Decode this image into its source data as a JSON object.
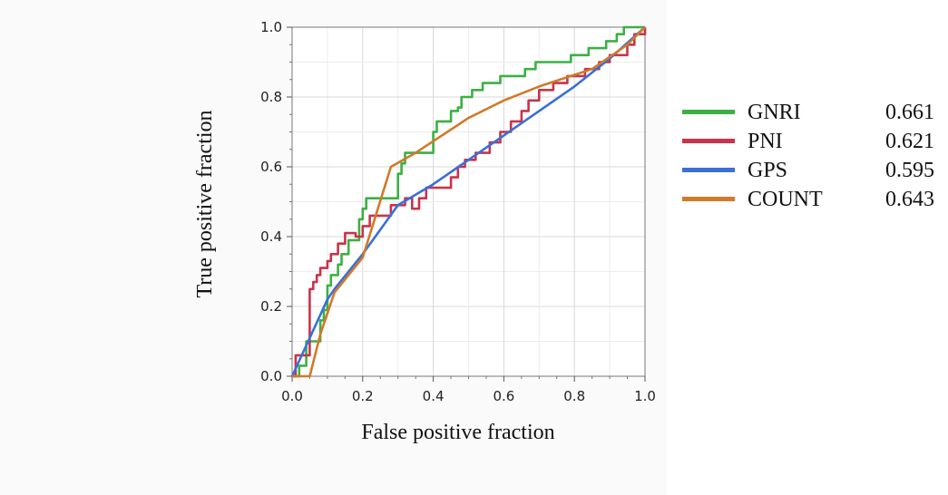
{
  "chart_data": {
    "type": "line",
    "xlabel": "False positive fraction",
    "ylabel": "True positive fraction",
    "xlim": [
      0,
      1
    ],
    "ylim": [
      0,
      1
    ],
    "xticks": [
      "0.0",
      "0.2",
      "0.4",
      "0.6",
      "0.8",
      "1.0"
    ],
    "yticks": [
      "0.0",
      "0.2",
      "0.4",
      "0.6",
      "0.8",
      "1.0"
    ],
    "grid": true,
    "legend_position": "right",
    "series": [
      {
        "name": "GNRI",
        "auc": "0.661",
        "color": "#3cb043",
        "points": [
          [
            0,
            0
          ],
          [
            0.02,
            0
          ],
          [
            0.02,
            0.03
          ],
          [
            0.04,
            0.03
          ],
          [
            0.04,
            0.1
          ],
          [
            0.08,
            0.1
          ],
          [
            0.08,
            0.16
          ],
          [
            0.09,
            0.16
          ],
          [
            0.09,
            0.19
          ],
          [
            0.1,
            0.19
          ],
          [
            0.1,
            0.26
          ],
          [
            0.11,
            0.26
          ],
          [
            0.11,
            0.29
          ],
          [
            0.13,
            0.29
          ],
          [
            0.13,
            0.32
          ],
          [
            0.14,
            0.32
          ],
          [
            0.14,
            0.35
          ],
          [
            0.16,
            0.35
          ],
          [
            0.16,
            0.39
          ],
          [
            0.19,
            0.39
          ],
          [
            0.19,
            0.45
          ],
          [
            0.2,
            0.45
          ],
          [
            0.2,
            0.48
          ],
          [
            0.21,
            0.48
          ],
          [
            0.21,
            0.51
          ],
          [
            0.3,
            0.51
          ],
          [
            0.3,
            0.58
          ],
          [
            0.31,
            0.58
          ],
          [
            0.31,
            0.61
          ],
          [
            0.32,
            0.61
          ],
          [
            0.32,
            0.64
          ],
          [
            0.4,
            0.64
          ],
          [
            0.4,
            0.7
          ],
          [
            0.41,
            0.7
          ],
          [
            0.41,
            0.73
          ],
          [
            0.45,
            0.73
          ],
          [
            0.45,
            0.76
          ],
          [
            0.47,
            0.76
          ],
          [
            0.47,
            0.77
          ],
          [
            0.48,
            0.77
          ],
          [
            0.48,
            0.8
          ],
          [
            0.51,
            0.8
          ],
          [
            0.51,
            0.82
          ],
          [
            0.54,
            0.82
          ],
          [
            0.54,
            0.84
          ],
          [
            0.59,
            0.84
          ],
          [
            0.59,
            0.86
          ],
          [
            0.66,
            0.86
          ],
          [
            0.66,
            0.88
          ],
          [
            0.69,
            0.88
          ],
          [
            0.69,
            0.9
          ],
          [
            0.79,
            0.9
          ],
          [
            0.79,
            0.92
          ],
          [
            0.84,
            0.92
          ],
          [
            0.84,
            0.94
          ],
          [
            0.89,
            0.94
          ],
          [
            0.89,
            0.96
          ],
          [
            0.92,
            0.96
          ],
          [
            0.92,
            0.98
          ],
          [
            0.94,
            0.98
          ],
          [
            0.94,
            1
          ],
          [
            1,
            1
          ]
        ]
      },
      {
        "name": "PNI",
        "auc": "0.621",
        "color": "#c8344a",
        "points": [
          [
            0,
            0
          ],
          [
            0.01,
            0
          ],
          [
            0.01,
            0.06
          ],
          [
            0.05,
            0.06
          ],
          [
            0.05,
            0.25
          ],
          [
            0.06,
            0.25
          ],
          [
            0.06,
            0.27
          ],
          [
            0.07,
            0.27
          ],
          [
            0.07,
            0.29
          ],
          [
            0.08,
            0.29
          ],
          [
            0.08,
            0.31
          ],
          [
            0.1,
            0.31
          ],
          [
            0.1,
            0.33
          ],
          [
            0.11,
            0.33
          ],
          [
            0.11,
            0.35
          ],
          [
            0.13,
            0.35
          ],
          [
            0.13,
            0.38
          ],
          [
            0.15,
            0.38
          ],
          [
            0.15,
            0.41
          ],
          [
            0.18,
            0.41
          ],
          [
            0.18,
            0.4
          ],
          [
            0.2,
            0.4
          ],
          [
            0.2,
            0.43
          ],
          [
            0.22,
            0.43
          ],
          [
            0.22,
            0.46
          ],
          [
            0.28,
            0.46
          ],
          [
            0.28,
            0.49
          ],
          [
            0.32,
            0.49
          ],
          [
            0.32,
            0.51
          ],
          [
            0.34,
            0.51
          ],
          [
            0.34,
            0.48
          ],
          [
            0.36,
            0.48
          ],
          [
            0.36,
            0.51
          ],
          [
            0.38,
            0.51
          ],
          [
            0.38,
            0.54
          ],
          [
            0.45,
            0.54
          ],
          [
            0.45,
            0.57
          ],
          [
            0.47,
            0.57
          ],
          [
            0.47,
            0.6
          ],
          [
            0.49,
            0.6
          ],
          [
            0.49,
            0.62
          ],
          [
            0.52,
            0.62
          ],
          [
            0.52,
            0.64
          ],
          [
            0.56,
            0.64
          ],
          [
            0.56,
            0.67
          ],
          [
            0.59,
            0.67
          ],
          [
            0.59,
            0.7
          ],
          [
            0.62,
            0.7
          ],
          [
            0.62,
            0.73
          ],
          [
            0.65,
            0.73
          ],
          [
            0.65,
            0.76
          ],
          [
            0.67,
            0.76
          ],
          [
            0.67,
            0.79
          ],
          [
            0.7,
            0.79
          ],
          [
            0.7,
            0.82
          ],
          [
            0.74,
            0.82
          ],
          [
            0.74,
            0.84
          ],
          [
            0.78,
            0.84
          ],
          [
            0.78,
            0.86
          ],
          [
            0.83,
            0.86
          ],
          [
            0.83,
            0.88
          ],
          [
            0.87,
            0.88
          ],
          [
            0.87,
            0.9
          ],
          [
            0.9,
            0.9
          ],
          [
            0.9,
            0.92
          ],
          [
            0.95,
            0.92
          ],
          [
            0.95,
            0.95
          ],
          [
            0.97,
            0.95
          ],
          [
            0.97,
            0.98
          ],
          [
            1,
            0.98
          ],
          [
            1,
            1
          ]
        ]
      },
      {
        "name": "GPS",
        "auc": "0.595",
        "color": "#3a6fd8",
        "points": [
          [
            0,
            0
          ],
          [
            0.1,
            0.22
          ],
          [
            0.12,
            0.25
          ],
          [
            0.2,
            0.35
          ],
          [
            0.3,
            0.49
          ],
          [
            0.4,
            0.55
          ],
          [
            0.5,
            0.62
          ],
          [
            0.6,
            0.69
          ],
          [
            0.7,
            0.76
          ],
          [
            0.8,
            0.83
          ],
          [
            0.9,
            0.91
          ],
          [
            1,
            1
          ]
        ]
      },
      {
        "name": "COUNT",
        "auc": "0.643",
        "color": "#d07a2a",
        "points": [
          [
            0,
            0
          ],
          [
            0.05,
            0
          ],
          [
            0.08,
            0.12
          ],
          [
            0.1,
            0.18
          ],
          [
            0.12,
            0.24
          ],
          [
            0.2,
            0.34
          ],
          [
            0.28,
            0.6
          ],
          [
            0.35,
            0.64
          ],
          [
            0.5,
            0.74
          ],
          [
            0.6,
            0.79
          ],
          [
            0.7,
            0.83
          ],
          [
            0.85,
            0.88
          ],
          [
            0.95,
            0.95
          ],
          [
            1,
            1
          ]
        ]
      }
    ]
  }
}
